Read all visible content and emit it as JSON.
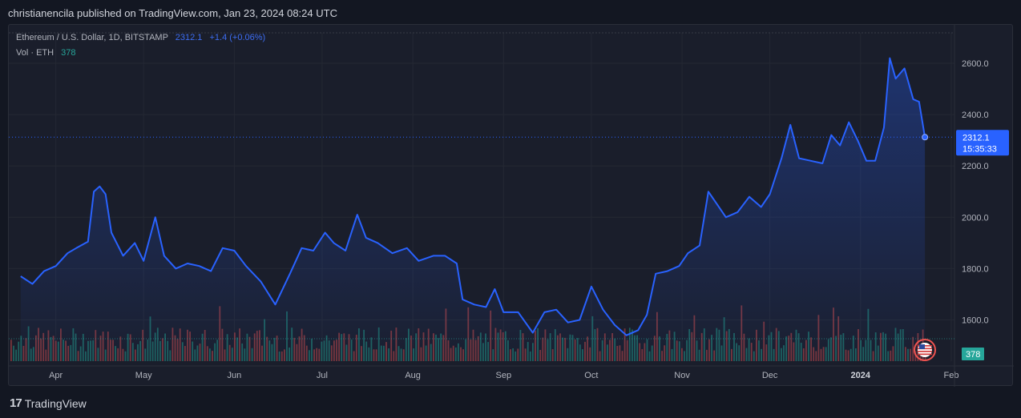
{
  "header": {
    "text": "christianencila published on TradingView.com, Jan 23, 2024 08:24 UTC"
  },
  "legend": {
    "symbol": "Ethereum / U.S. Dollar, 1D, BITSTAMP",
    "price_value": "2312.1",
    "change": "+1.4 (+0.06%)",
    "volume_label": "Vol · ETH",
    "volume_value": "378"
  },
  "price_tag": {
    "price": "2312.1",
    "countdown": "15:35:33"
  },
  "volume_tag": "378",
  "footer": {
    "brand": "TradingView"
  },
  "colors": {
    "line": "#2962ff",
    "up": "#26a69a",
    "down": "#ef5350",
    "bg": "#1a1e2b",
    "grid": "#242833"
  },
  "chart_data": {
    "type": "area",
    "y_axis": {
      "ticks": [
        1600.0,
        1800.0,
        2000.0,
        2200.0,
        2400.0,
        2600.0
      ],
      "labels": [
        "1600.0",
        "1800.0",
        "2000.0",
        "2200.0",
        "2400.0",
        "2600.0"
      ]
    },
    "x_axis": {
      "labels": [
        {
          "text": "Apr",
          "date": "2023-04-01"
        },
        {
          "text": "May",
          "date": "2023-05-01"
        },
        {
          "text": "Jun",
          "date": "2023-06-01"
        },
        {
          "text": "Jul",
          "date": "2023-07-01"
        },
        {
          "text": "Aug",
          "date": "2023-08-01"
        },
        {
          "text": "Sep",
          "date": "2023-09-01"
        },
        {
          "text": "Oct",
          "date": "2023-10-01"
        },
        {
          "text": "Nov",
          "date": "2023-11-01"
        },
        {
          "text": "Dec",
          "date": "2023-12-01"
        },
        {
          "text": "2024",
          "date": "2024-01-01",
          "bold": true
        },
        {
          "text": "Feb",
          "date": "2024-02-01"
        }
      ]
    },
    "series": [
      {
        "name": "Ethereum / U.S. Dollar",
        "points": [
          [
            "2023-03-20",
            1770
          ],
          [
            "2023-03-24",
            1740
          ],
          [
            "2023-03-28",
            1790
          ],
          [
            "2023-04-01",
            1810
          ],
          [
            "2023-04-05",
            1860
          ],
          [
            "2023-04-08",
            1880
          ],
          [
            "2023-04-12",
            1905
          ],
          [
            "2023-04-14",
            2100
          ],
          [
            "2023-04-16",
            2120
          ],
          [
            "2023-04-18",
            2090
          ],
          [
            "2023-04-20",
            1940
          ],
          [
            "2023-04-24",
            1850
          ],
          [
            "2023-04-28",
            1900
          ],
          [
            "2023-05-01",
            1830
          ],
          [
            "2023-05-05",
            2000
          ],
          [
            "2023-05-08",
            1850
          ],
          [
            "2023-05-12",
            1800
          ],
          [
            "2023-05-16",
            1820
          ],
          [
            "2023-05-20",
            1810
          ],
          [
            "2023-05-24",
            1790
          ],
          [
            "2023-05-28",
            1880
          ],
          [
            "2023-06-01",
            1870
          ],
          [
            "2023-06-05",
            1810
          ],
          [
            "2023-06-10",
            1750
          ],
          [
            "2023-06-15",
            1660
          ],
          [
            "2023-06-20",
            1780
          ],
          [
            "2023-06-24",
            1880
          ],
          [
            "2023-06-28",
            1870
          ],
          [
            "2023-07-02",
            1940
          ],
          [
            "2023-07-05",
            1900
          ],
          [
            "2023-07-09",
            1870
          ],
          [
            "2023-07-13",
            2010
          ],
          [
            "2023-07-16",
            1920
          ],
          [
            "2023-07-20",
            1900
          ],
          [
            "2023-07-25",
            1860
          ],
          [
            "2023-07-30",
            1880
          ],
          [
            "2023-08-03",
            1830
          ],
          [
            "2023-08-08",
            1850
          ],
          [
            "2023-08-12",
            1850
          ],
          [
            "2023-08-16",
            1820
          ],
          [
            "2023-08-18",
            1680
          ],
          [
            "2023-08-22",
            1660
          ],
          [
            "2023-08-26",
            1650
          ],
          [
            "2023-08-29",
            1720
          ],
          [
            "2023-09-01",
            1630
          ],
          [
            "2023-09-06",
            1630
          ],
          [
            "2023-09-11",
            1550
          ],
          [
            "2023-09-15",
            1630
          ],
          [
            "2023-09-19",
            1640
          ],
          [
            "2023-09-23",
            1590
          ],
          [
            "2023-09-27",
            1600
          ],
          [
            "2023-10-01",
            1730
          ],
          [
            "2023-10-05",
            1640
          ],
          [
            "2023-10-09",
            1580
          ],
          [
            "2023-10-13",
            1540
          ],
          [
            "2023-10-17",
            1560
          ],
          [
            "2023-10-20",
            1620
          ],
          [
            "2023-10-23",
            1780
          ],
          [
            "2023-10-27",
            1790
          ],
          [
            "2023-10-31",
            1810
          ],
          [
            "2023-11-03",
            1860
          ],
          [
            "2023-11-07",
            1890
          ],
          [
            "2023-11-10",
            2100
          ],
          [
            "2023-11-13",
            2050
          ],
          [
            "2023-11-16",
            2000
          ],
          [
            "2023-11-20",
            2020
          ],
          [
            "2023-11-24",
            2080
          ],
          [
            "2023-11-28",
            2040
          ],
          [
            "2023-12-01",
            2090
          ],
          [
            "2023-12-05",
            2230
          ],
          [
            "2023-12-08",
            2360
          ],
          [
            "2023-12-11",
            2230
          ],
          [
            "2023-12-15",
            2220
          ],
          [
            "2023-12-19",
            2210
          ],
          [
            "2023-12-22",
            2320
          ],
          [
            "2023-12-25",
            2280
          ],
          [
            "2023-12-28",
            2370
          ],
          [
            "2023-12-31",
            2300
          ],
          [
            "2024-01-03",
            2220
          ],
          [
            "2024-01-06",
            2220
          ],
          [
            "2024-01-09",
            2350
          ],
          [
            "2024-01-11",
            2620
          ],
          [
            "2024-01-13",
            2540
          ],
          [
            "2024-01-16",
            2580
          ],
          [
            "2024-01-19",
            2460
          ],
          [
            "2024-01-21",
            2450
          ],
          [
            "2024-01-23",
            2312.1
          ]
        ]
      }
    ],
    "last_value": 2312.1,
    "grid": true
  }
}
